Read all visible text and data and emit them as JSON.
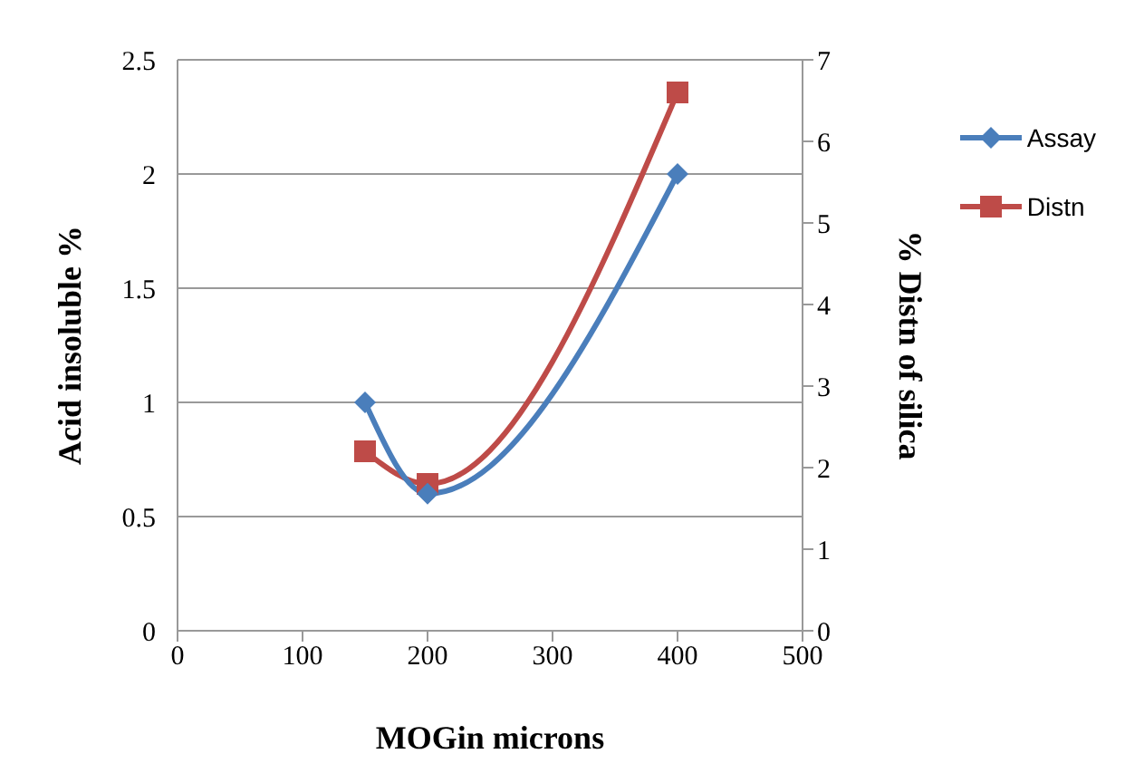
{
  "chart_data": {
    "type": "line",
    "xlabel": "MOGin microns",
    "ylabel": "Acid insoluble %",
    "y2label": "% Distn of silica",
    "x": [
      150,
      200,
      400
    ],
    "series": [
      {
        "name": "Assay",
        "color": "#4a7ebb",
        "values": [
          1,
          0.6,
          2
        ],
        "marker": "diamond"
      },
      {
        "name": "Distn",
        "color": "#be4b48",
        "values": [
          2.2,
          1.8,
          6.6
        ],
        "marker": "square",
        "axis": "y2"
      }
    ],
    "xlim": [
      0,
      500
    ],
    "xticks": [
      0,
      100,
      200,
      300,
      400,
      500
    ],
    "ylim": [
      0,
      2.5
    ],
    "yticks": [
      0,
      0.5,
      1,
      1.5,
      2,
      2.5
    ],
    "y2lim": [
      0,
      7
    ],
    "y2ticks": [
      0,
      1,
      2,
      3,
      4,
      5,
      6,
      7
    ],
    "grid": "y",
    "legend": "right"
  }
}
